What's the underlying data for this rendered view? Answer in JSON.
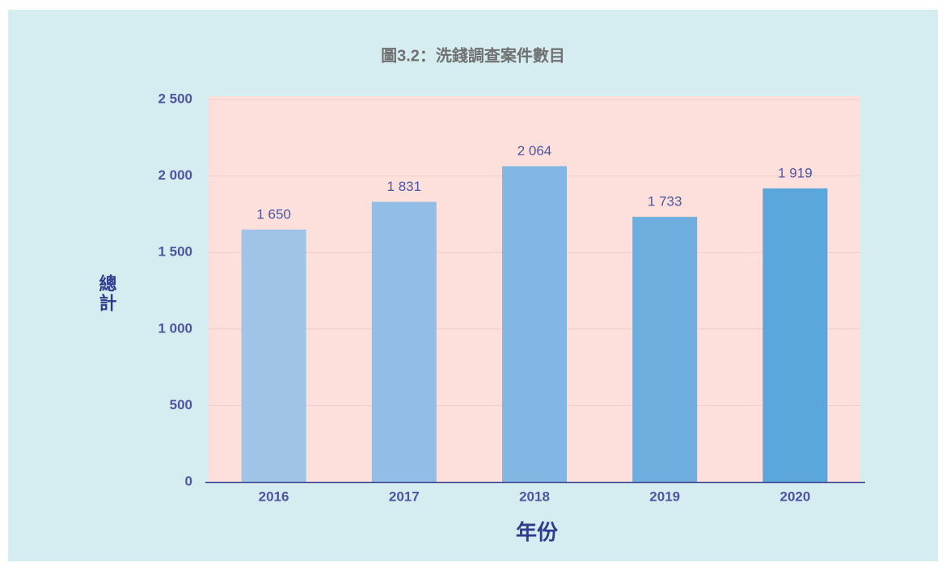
{
  "chart_data": {
    "type": "bar",
    "title": "圖3.2：洗錢調查案件數目",
    "x_label": "年份",
    "y_label": "總計",
    "categories": [
      "2016",
      "2017",
      "2018",
      "2019",
      "2020"
    ],
    "values": [
      1650,
      1831,
      2064,
      1733,
      1919
    ],
    "value_labels": [
      "1 650",
      "1 831",
      "2 064",
      "1 733",
      "1 919"
    ],
    "colors": [
      "#9fc4e8",
      "#91bde6",
      "#82b6e3",
      "#6eaedf",
      "#5ba7dc"
    ],
    "ylim": [
      0,
      2500
    ],
    "yticks": [
      0,
      500,
      {
        "value": 1000,
        "label": "1 000"
      },
      {
        "value": 1500,
        "label": "1 500"
      },
      {
        "value": 2000,
        "label": "2 000"
      },
      {
        "value": 2500,
        "label": "2 500"
      }
    ],
    "grid": true
  }
}
